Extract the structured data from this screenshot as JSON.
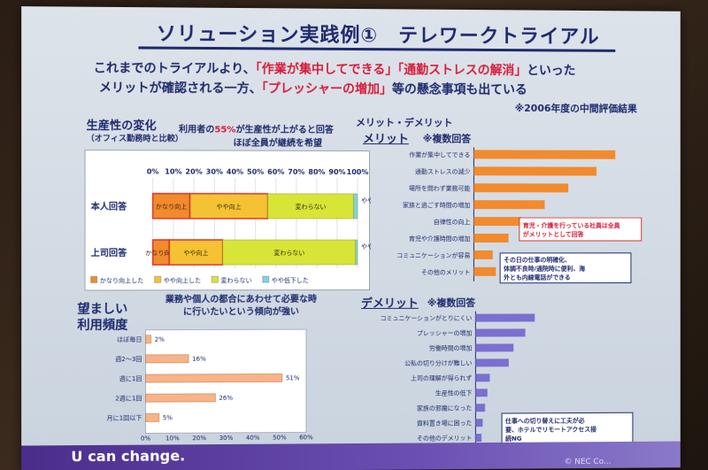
{
  "slide": {
    "title": "ソリューション実践例①　テレワークトライアル",
    "intro_line1_a": "これまでのトライアルより、",
    "intro_line1_red1": "「作業が集中してできる」",
    "intro_line1_red2": "「通勤ストレスの解消」",
    "intro_line1_b": "といった",
    "intro_line2_a": "メリットが確認される一方、",
    "intro_line2_red": "「プレッシャーの増加」",
    "intro_line2_b": "等の懸念事項も出ている",
    "note": "※2006年度の中間評価結果",
    "footer": "U can change.",
    "footer_small": "© NEC Co..."
  },
  "productivity": {
    "header": "生産性の変化",
    "subheader": "（オフィス勤務時と比較）",
    "caption_a": "利用者の",
    "caption_pct": "55%",
    "caption_b": "が生産性が上がると回答",
    "caption_line2": "ほぼ全員が継続を希望"
  },
  "merit": {
    "header": "メリット・デメリット",
    "sub": "メリット",
    "sub_note": "※複数回答",
    "callout1": "育児・介護を行っている社員は全員がメリットとして回答",
    "callout2": "その日の仕事の明確化、体調不良時/通院時に便利、海外とも内線電話ができる"
  },
  "frequency": {
    "header_line1": "望ましい",
    "header_line2": "利用頻度",
    "caption": "業務や個人の都合にあわせて必要な時に行いたいという傾向が強い"
  },
  "demerit": {
    "header": "デメリット",
    "sub_note": "※複数回答",
    "callout": "仕事への切り替えに工夫が必要、ホテルでリモートアクセス接続NG"
  },
  "chart_data": [
    {
      "type": "bar",
      "orientation": "horizontal-stacked",
      "categories": [
        "本人回答",
        "上司回答"
      ],
      "x_ticks": [
        "0%",
        "10%",
        "20%",
        "30%",
        "40%",
        "50%",
        "60%",
        "70%",
        "80%",
        "90%",
        "100%"
      ],
      "xlim": [
        0,
        100
      ],
      "series": [
        {
          "name": "かなり向上した",
          "color": "#f28a2e",
          "values": [
            18,
            8
          ]
        },
        {
          "name": "やや向上した",
          "color": "#f5c233",
          "values": [
            38,
            26
          ]
        },
        {
          "name": "変わらない",
          "color": "#d8e436",
          "values": [
            42,
            65
          ]
        },
        {
          "name": "やや低下した",
          "color": "#7fd3e0",
          "values": [
            2,
            1
          ]
        }
      ],
      "segment_labels": [
        [
          "かなり向上",
          "やや向上",
          "変わらない",
          ""
        ],
        [
          "かなり向上",
          "やや向上",
          "変わらない",
          ""
        ]
      ],
      "side_labels": [
        "やや低下(2%)",
        "やや低下(1%)"
      ]
    },
    {
      "type": "bar",
      "orientation": "horizontal",
      "title": "メリット",
      "categories": [
        "作業が集中してできる",
        "通勤ストレスの減少",
        "場所を問わず業務可能",
        "家族と過ごす時間の増加",
        "自律性の向上",
        "育児や介護時間の増加",
        "コミュニケーションが容易",
        "その他のメリット"
      ],
      "values": [
        90,
        78,
        60,
        45,
        30,
        22,
        12,
        14
      ],
      "color": "#f28a2e"
    },
    {
      "type": "bar",
      "orientation": "horizontal",
      "categories": [
        "ほぼ毎日",
        "週2～3回",
        "週に1回",
        "2週に1回",
        "月に1回以下"
      ],
      "values": [
        2,
        16,
        51,
        26,
        5
      ],
      "data_labels": [
        "2%",
        "16%",
        "51%",
        "26%",
        "5%"
      ],
      "x_ticks": [
        "0%",
        "10%",
        "20%",
        "30%",
        "40%",
        "50%",
        "60%"
      ],
      "xlim": [
        0,
        60
      ],
      "color": "#f5b48a"
    },
    {
      "type": "bar",
      "orientation": "horizontal",
      "title": "デメリット",
      "categories": [
        "コミュニケーションがとりにくい",
        "プレッシャーの増加",
        "労働時間の増加",
        "公私の切り分けが難しい",
        "上司の理解が得られず",
        "生産性の低下",
        "家族の邪魔になった",
        "資料置き場に困った",
        "その他のデメリット"
      ],
      "values": [
        50,
        42,
        32,
        28,
        12,
        10,
        8,
        6,
        5
      ],
      "color": "#7b6fd0"
    }
  ]
}
